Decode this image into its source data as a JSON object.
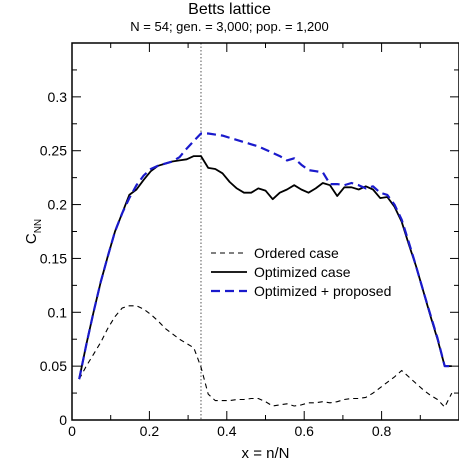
{
  "chart_data": {
    "type": "line",
    "title": "Betts lattice",
    "subtitle": "N = 54; gen. = 3,000; pop. = 1,200",
    "xlabel": "x = n/N",
    "ylabel": "C",
    "ylabel_subscript": "NN",
    "xlim": [
      0,
      1
    ],
    "ylim": [
      0,
      0.35
    ],
    "x_ticks": [
      0,
      0.2,
      0.4,
      0.6,
      0.8
    ],
    "x_tick_labels": [
      "0",
      "0.2",
      "0.4",
      "0.6",
      "0.8"
    ],
    "y_ticks": [
      0,
      0.05,
      0.1,
      0.15,
      0.2,
      0.25,
      0.3
    ],
    "y_tick_labels": [
      "0",
      "0.05",
      "0.1",
      "0.15",
      "0.2",
      "0.25",
      "0.3"
    ],
    "reference_line_x": 0.3333,
    "legend_position": "center-right",
    "series": [
      {
        "name": "Ordered case",
        "color": "#000000",
        "dash": "dashed",
        "x": [
          0.0185,
          0.037,
          0.0556,
          0.0741,
          0.0926,
          0.1111,
          0.1296,
          0.1481,
          0.1667,
          0.1852,
          0.2037,
          0.2222,
          0.2407,
          0.2593,
          0.2778,
          0.2963,
          0.3148,
          0.3333,
          0.3519,
          0.3704,
          0.3889,
          0.4074,
          0.4259,
          0.4444,
          0.463,
          0.4815,
          0.5,
          0.5185,
          0.537,
          0.5556,
          0.5741,
          0.5926,
          0.6111,
          0.6296,
          0.6481,
          0.6667,
          0.6852,
          0.7037,
          0.7222,
          0.7407,
          0.7593,
          0.7778,
          0.7963,
          0.8148,
          0.8333,
          0.8519,
          0.8704,
          0.8889,
          0.9074,
          0.9259,
          0.9444,
          0.963,
          0.9815
        ],
        "y": [
          0.038,
          0.05,
          0.061,
          0.072,
          0.085,
          0.096,
          0.104,
          0.106,
          0.106,
          0.103,
          0.098,
          0.092,
          0.085,
          0.08,
          0.075,
          0.071,
          0.067,
          0.049,
          0.024,
          0.018,
          0.018,
          0.018,
          0.019,
          0.019,
          0.02,
          0.02,
          0.017,
          0.013,
          0.014,
          0.015,
          0.013,
          0.014,
          0.016,
          0.016,
          0.017,
          0.016,
          0.017,
          0.019,
          0.02,
          0.02,
          0.021,
          0.025,
          0.03,
          0.035,
          0.04,
          0.046,
          0.04,
          0.034,
          0.028,
          0.023,
          0.019,
          0.012,
          0.025
        ]
      },
      {
        "name": "Optimized case",
        "color": "#000000",
        "dash": "solid",
        "x": [
          0.0185,
          0.037,
          0.0556,
          0.0741,
          0.0926,
          0.1111,
          0.1296,
          0.1481,
          0.1667,
          0.1852,
          0.2037,
          0.2222,
          0.2407,
          0.2593,
          0.2778,
          0.2963,
          0.3148,
          0.3333,
          0.3519,
          0.3704,
          0.3889,
          0.4074,
          0.4259,
          0.4444,
          0.463,
          0.4815,
          0.5,
          0.5185,
          0.537,
          0.5556,
          0.5741,
          0.5926,
          0.6111,
          0.6296,
          0.6481,
          0.6667,
          0.6852,
          0.7037,
          0.7222,
          0.7407,
          0.7593,
          0.7778,
          0.7963,
          0.8148,
          0.8333,
          0.8519,
          0.8704,
          0.8889,
          0.9074,
          0.9259,
          0.9444,
          0.963,
          0.9815
        ],
        "y": [
          0.038,
          0.07,
          0.1,
          0.128,
          0.152,
          0.175,
          0.192,
          0.209,
          0.214,
          0.223,
          0.231,
          0.236,
          0.238,
          0.24,
          0.241,
          0.242,
          0.245,
          0.245,
          0.234,
          0.233,
          0.229,
          0.221,
          0.215,
          0.211,
          0.211,
          0.215,
          0.213,
          0.205,
          0.211,
          0.214,
          0.218,
          0.214,
          0.211,
          0.215,
          0.22,
          0.218,
          0.208,
          0.216,
          0.216,
          0.214,
          0.217,
          0.214,
          0.206,
          0.207,
          0.198,
          0.184,
          0.163,
          0.143,
          0.12,
          0.097,
          0.075,
          0.05,
          0.05
        ]
      },
      {
        "name": "Optimized + proposed",
        "color": "#1a1acc",
        "dash": "dashed",
        "x": [
          0.0185,
          0.037,
          0.0556,
          0.0741,
          0.0926,
          0.1111,
          0.1296,
          0.1481,
          0.1667,
          0.1852,
          0.2037,
          0.2222,
          0.2407,
          0.2593,
          0.2778,
          0.2963,
          0.3148,
          0.3333,
          0.3519,
          0.3704,
          0.3889,
          0.4074,
          0.4259,
          0.4444,
          0.463,
          0.4815,
          0.5,
          0.5185,
          0.537,
          0.5556,
          0.5741,
          0.5926,
          0.6111,
          0.6296,
          0.6481,
          0.6667,
          0.6852,
          0.7037,
          0.7222,
          0.7407,
          0.7593,
          0.7778,
          0.7963,
          0.8148,
          0.8333,
          0.8519,
          0.8704,
          0.8889,
          0.9074,
          0.9259,
          0.9444,
          0.963,
          0.9815
        ],
        "y": [
          0.038,
          0.07,
          0.1,
          0.128,
          0.152,
          0.175,
          0.192,
          0.206,
          0.218,
          0.227,
          0.233,
          0.236,
          0.238,
          0.24,
          0.244,
          0.252,
          0.259,
          0.266,
          0.266,
          0.265,
          0.264,
          0.262,
          0.26,
          0.258,
          0.256,
          0.254,
          0.251,
          0.248,
          0.245,
          0.241,
          0.243,
          0.237,
          0.232,
          0.231,
          0.23,
          0.219,
          0.219,
          0.218,
          0.22,
          0.218,
          0.215,
          0.217,
          0.211,
          0.209,
          0.2,
          0.186,
          0.165,
          0.143,
          0.12,
          0.098,
          0.076,
          0.05,
          0.05
        ]
      }
    ]
  }
}
